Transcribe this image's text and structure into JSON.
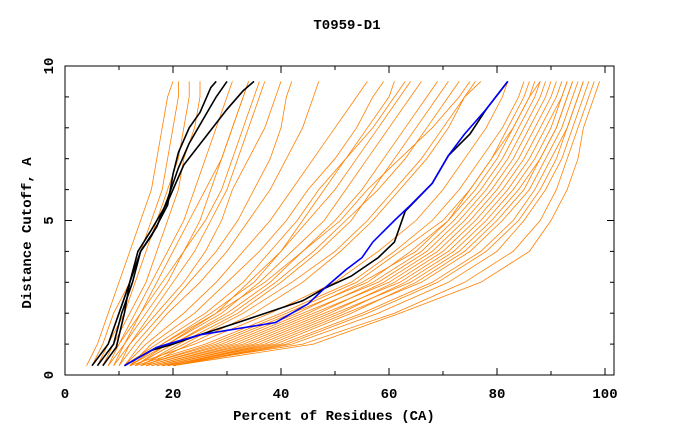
{
  "chart_data": {
    "type": "line",
    "title": "T0959-D1",
    "xlabel": "Percent of Residues (CA)",
    "ylabel": "Distance Cutoff, A",
    "xlim": [
      0,
      101.7
    ],
    "ylim": [
      0,
      10
    ],
    "xticks": [
      "0",
      "20",
      "40",
      "60",
      "80",
      "100"
    ],
    "yticks": [
      "0",
      "5",
      "10"
    ],
    "colors": {
      "models": "#ff8000",
      "highlight": "#000000",
      "selected": "#0000ff"
    },
    "y_levels": [
      0.3,
      1,
      2,
      3,
      4,
      5,
      6,
      7,
      8,
      9,
      9.5
    ],
    "orange_series_x": [
      [
        4,
        6,
        8,
        10,
        12,
        14,
        16,
        17,
        18,
        19,
        20
      ],
      [
        5,
        7,
        9,
        12,
        14,
        16,
        18,
        19,
        20,
        21,
        21
      ],
      [
        6,
        8,
        11,
        13,
        15,
        17,
        19,
        21,
        22,
        23,
        23
      ],
      [
        7,
        9,
        12,
        15,
        17,
        19,
        21,
        22,
        24,
        25,
        25
      ],
      [
        8,
        10,
        13,
        16,
        19,
        22,
        24,
        26,
        28,
        30,
        31
      ],
      [
        9,
        11,
        14,
        17,
        20,
        23,
        26,
        29,
        31,
        33,
        34
      ],
      [
        7,
        10,
        14,
        18,
        22,
        26,
        29,
        31,
        33,
        35,
        36
      ],
      [
        10,
        12,
        16,
        20,
        24,
        27,
        30,
        32,
        34,
        36,
        37
      ],
      [
        9,
        12,
        17,
        22,
        26,
        29,
        31,
        34,
        37,
        39,
        40
      ],
      [
        8,
        11,
        15,
        19,
        22,
        25,
        27,
        29,
        31,
        33,
        34
      ],
      [
        10,
        13,
        18,
        23,
        28,
        32,
        35,
        38,
        40,
        41,
        42
      ],
      [
        11,
        14,
        19,
        25,
        30,
        34,
        38,
        41,
        44,
        46,
        47
      ],
      [
        11,
        15,
        22,
        28,
        33,
        38,
        42,
        46,
        50,
        54,
        56
      ],
      [
        12,
        16,
        24,
        30,
        36,
        41,
        45,
        50,
        54,
        57,
        59
      ],
      [
        11,
        17,
        26,
        33,
        38,
        43,
        47,
        52,
        56,
        60,
        61
      ],
      [
        12,
        18,
        27,
        35,
        40,
        45,
        50,
        54,
        58,
        62,
        64
      ],
      [
        13,
        19,
        29,
        36,
        42,
        48,
        52,
        56,
        60,
        64,
        66
      ],
      [
        12,
        18,
        28,
        34,
        40,
        44,
        48,
        52,
        57,
        61,
        63
      ],
      [
        13,
        20,
        30,
        38,
        44,
        50,
        55,
        59,
        63,
        67,
        69
      ],
      [
        14,
        21,
        32,
        40,
        47,
        53,
        57,
        61,
        65,
        69,
        71
      ],
      [
        13,
        20,
        31,
        39,
        46,
        52,
        58,
        63,
        67,
        71,
        73
      ],
      [
        14,
        22,
        33,
        42,
        50,
        56,
        61,
        66,
        70,
        74,
        76
      ],
      [
        12,
        19,
        28,
        37,
        44,
        51,
        56,
        62,
        68,
        73,
        75
      ],
      [
        15,
        23,
        35,
        44,
        51,
        57,
        62,
        67,
        71,
        74,
        77
      ],
      [
        12,
        24,
        38,
        50,
        58,
        65,
        70,
        74,
        78,
        81,
        82
      ],
      [
        13,
        26,
        40,
        53,
        61,
        68,
        73,
        77,
        81,
        84,
        85
      ],
      [
        14,
        28,
        42,
        56,
        64,
        71,
        76,
        80,
        83,
        86,
        87
      ],
      [
        15,
        30,
        44,
        58,
        67,
        73,
        78,
        82,
        85,
        88,
        89
      ],
      [
        16,
        32,
        46,
        60,
        69,
        75,
        80,
        84,
        87,
        90,
        91
      ],
      [
        17,
        34,
        48,
        62,
        71,
        77,
        82,
        86,
        89,
        92,
        93
      ],
      [
        18,
        36,
        50,
        64,
        73,
        79,
        84,
        88,
        91,
        93,
        94
      ],
      [
        19,
        38,
        52,
        66,
        75,
        81,
        86,
        89,
        92,
        94,
        95
      ],
      [
        20,
        40,
        55,
        68,
        77,
        83,
        87,
        90,
        93,
        95,
        96
      ],
      [
        20,
        42,
        58,
        71,
        80,
        85,
        89,
        92,
        94,
        96,
        97
      ],
      [
        18,
        44,
        61,
        74,
        83,
        88,
        91,
        93,
        95,
        97,
        98
      ],
      [
        20,
        46,
        62,
        77,
        86,
        90,
        93,
        95,
        96,
        98,
        99
      ],
      [
        14,
        27,
        41,
        54,
        62,
        70,
        75,
        79,
        82,
        85,
        86
      ],
      [
        16,
        31,
        45,
        57,
        66,
        72,
        77,
        81,
        84,
        87,
        88
      ],
      [
        18,
        35,
        49,
        61,
        70,
        76,
        81,
        85,
        88,
        91,
        92
      ],
      [
        19,
        39,
        53,
        65,
        74,
        80,
        85,
        88,
        91,
        93,
        94
      ],
      [
        17,
        33,
        47,
        59,
        68,
        74,
        79,
        83,
        86,
        89,
        90
      ],
      [
        15,
        29,
        43,
        55,
        65,
        71,
        75,
        79,
        83,
        86,
        88
      ],
      [
        20,
        41,
        56,
        69,
        78,
        84,
        88,
        91,
        93,
        95,
        96
      ],
      [
        19,
        37,
        51,
        63,
        72,
        78,
        83,
        87,
        90,
        92,
        93
      ]
    ],
    "black_series": [
      [
        [
          5,
          0.3
        ],
        [
          8,
          1
        ],
        [
          10,
          2
        ],
        [
          12,
          3
        ],
        [
          14,
          4
        ],
        [
          16,
          4.5
        ],
        [
          19,
          5.5
        ],
        [
          20,
          6.5
        ],
        [
          21,
          7.2
        ],
        [
          23,
          8
        ],
        [
          25,
          8.5
        ],
        [
          27,
          9.3
        ],
        [
          28,
          9.5
        ]
      ],
      [
        [
          6,
          0.3
        ],
        [
          9,
          1
        ],
        [
          10.5,
          2
        ],
        [
          12.5,
          3
        ],
        [
          14,
          4
        ],
        [
          17,
          4.8
        ],
        [
          19,
          5.7
        ],
        [
          21,
          6.7
        ],
        [
          23,
          7.5
        ],
        [
          26,
          8.4
        ],
        [
          28,
          9
        ],
        [
          30,
          9.5
        ]
      ],
      [
        [
          7,
          0.3
        ],
        [
          9.5,
          0.9
        ],
        [
          11,
          2
        ],
        [
          12,
          3
        ],
        [
          13.5,
          4
        ],
        [
          16,
          4.7
        ],
        [
          19,
          5.6
        ],
        [
          22,
          6.8
        ],
        [
          26,
          7.7
        ],
        [
          30,
          8.6
        ],
        [
          33,
          9.2
        ],
        [
          35,
          9.5
        ]
      ],
      [
        [
          11,
          0.3
        ],
        [
          16,
          0.8
        ],
        [
          20,
          1
        ],
        [
          25,
          1.3
        ],
        [
          32,
          1.7
        ],
        [
          44,
          2.4
        ],
        [
          48,
          2.8
        ],
        [
          53,
          3.2
        ],
        [
          58,
          3.8
        ],
        [
          61,
          4.3
        ],
        [
          63,
          5.3
        ],
        [
          68,
          6.2
        ],
        [
          71,
          7.1
        ],
        [
          75,
          7.8
        ],
        [
          78,
          8.6
        ],
        [
          82,
          9.5
        ]
      ]
    ],
    "blue_series": [
      [
        11,
        0.3
      ],
      [
        17,
        0.9
      ],
      [
        25,
        1.3
      ],
      [
        39,
        1.7
      ],
      [
        45,
        2.3
      ],
      [
        48,
        2.8
      ],
      [
        52,
        3.4
      ],
      [
        55,
        3.8
      ],
      [
        57,
        4.3
      ],
      [
        61,
        5
      ],
      [
        64,
        5.5
      ],
      [
        68,
        6.2
      ],
      [
        71,
        7.1
      ],
      [
        74,
        7.8
      ],
      [
        78,
        8.6
      ],
      [
        82,
        9.5
      ]
    ]
  }
}
